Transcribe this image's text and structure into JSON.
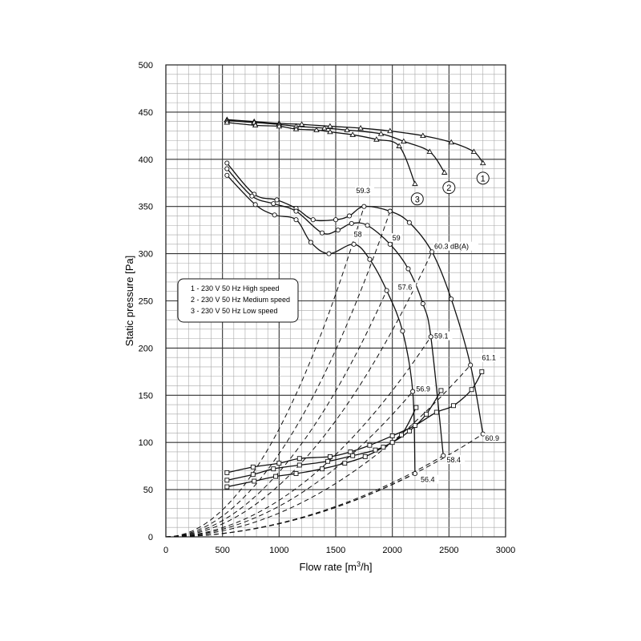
{
  "chart_data": {
    "type": "line",
    "xlabel_main": "Flow rate [m",
    "xlabel_sup": "3",
    "xlabel_end": "/h]",
    "ylabel": "Static pressure [Pa]",
    "xlim": [
      0,
      3000
    ],
    "ylim": [
      0,
      500
    ],
    "x_ticks": [
      0,
      500,
      1000,
      1500,
      2000,
      2500,
      3000
    ],
    "y_ticks": [
      0,
      50,
      100,
      150,
      200,
      250,
      300,
      350,
      400,
      450,
      500
    ],
    "grid": true,
    "legend": {
      "placement": "left",
      "entries": [
        "1 - 230 V 50 Hz High speed",
        "2 - 230 V 50 Hz Medium speed",
        "3 - 230 V 50 Hz Low speed"
      ]
    },
    "series": [
      {
        "name": "1",
        "style": "solid",
        "marker": "triangle",
        "x": [
          540,
          780,
          1000,
          1200,
          1450,
          1720,
          1980,
          2270,
          2520,
          2720,
          2800
        ],
        "y": [
          442,
          440,
          438,
          437,
          435,
          433,
          430,
          425,
          418,
          408,
          396
        ]
      },
      {
        "name": "2",
        "style": "solid",
        "marker": "triangle",
        "x": [
          540,
          780,
          1000,
          1150,
          1400,
          1600,
          1900,
          2100,
          2330,
          2460
        ],
        "y": [
          441,
          439,
          437,
          435,
          433,
          431,
          427,
          419,
          408,
          386
        ]
      },
      {
        "name": "3",
        "style": "solid",
        "marker": "triangle",
        "x": [
          540,
          790,
          1000,
          1150,
          1330,
          1450,
          1650,
          1860,
          2060,
          2200
        ],
        "y": [
          439,
          436,
          435,
          432,
          431,
          429,
          426,
          421,
          414,
          374
        ]
      },
      {
        "name": "",
        "style": "solid",
        "marker": "circle",
        "x": [
          540,
          780,
          980,
          1150,
          1300,
          1500,
          1620,
          1750,
          1980,
          2150,
          2350,
          2520,
          2690,
          2800
        ],
        "y": [
          396,
          363,
          357,
          348,
          336,
          336,
          340,
          350,
          345,
          333,
          302,
          252,
          182,
          109
        ]
      },
      {
        "name": "",
        "style": "solid",
        "marker": "circle",
        "x": [
          540,
          760,
          950,
          1150,
          1380,
          1520,
          1640,
          1780,
          1980,
          2140,
          2270,
          2340,
          2450
        ],
        "y": [
          390,
          361,
          353,
          345,
          322,
          325,
          332,
          330,
          310,
          284,
          247,
          212,
          86
        ]
      },
      {
        "name": "",
        "style": "solid",
        "marker": "circle",
        "x": [
          540,
          790,
          960,
          1150,
          1280,
          1440,
          1660,
          1800,
          1950,
          2090,
          2180,
          2200
        ],
        "y": [
          383,
          352,
          341,
          336,
          312,
          300,
          310,
          294,
          261,
          218,
          154,
          67
        ]
      },
      {
        "name": "",
        "style": "solid",
        "marker": "square",
        "x": [
          540,
          770,
          1000,
          1180,
          1450,
          1630,
          1800,
          2000,
          2200,
          2390,
          2540,
          2700,
          2790
        ],
        "y": [
          68,
          74,
          78,
          83,
          85,
          90,
          97,
          107,
          118,
          132,
          139,
          156,
          175
        ]
      },
      {
        "name": "",
        "style": "solid",
        "marker": "square",
        "x": [
          540,
          770,
          950,
          1180,
          1430,
          1650,
          1850,
          2000,
          2150,
          2300,
          2430
        ],
        "y": [
          60,
          66,
          72,
          76,
          80,
          86,
          92,
          100,
          112,
          130,
          155
        ]
      },
      {
        "name": "",
        "style": "solid",
        "marker": "square",
        "x": [
          540,
          780,
          970,
          1150,
          1380,
          1580,
          1760,
          1920,
          2080,
          2210
        ],
        "y": [
          53,
          59,
          64,
          67,
          72,
          78,
          85,
          95,
          108,
          137
        ]
      },
      {
        "name": "",
        "style": "dashed",
        "x": [
          0,
          1750
        ],
        "y": [
          0,
          350
        ]
      },
      {
        "name": "",
        "style": "dashed",
        "x": [
          0,
          1980
        ],
        "y": [
          0,
          345
        ]
      },
      {
        "name": "",
        "style": "dashed",
        "x": [
          0,
          2350
        ],
        "y": [
          0,
          302
        ]
      },
      {
        "name": "",
        "style": "dashed",
        "x": [
          0,
          1950
        ],
        "y": [
          0,
          261
        ]
      },
      {
        "name": "",
        "style": "dashed",
        "x": [
          0,
          2340
        ],
        "y": [
          0,
          212
        ]
      },
      {
        "name": "",
        "style": "dashed",
        "x": [
          0,
          2690
        ],
        "y": [
          0,
          182
        ]
      },
      {
        "name": "",
        "style": "dashed",
        "x": [
          0,
          2180
        ],
        "y": [
          0,
          154
        ]
      },
      {
        "name": "",
        "style": "dashed",
        "x": [
          0,
          2450
        ],
        "y": [
          0,
          86
        ]
      },
      {
        "name": "",
        "style": "dashed",
        "x": [
          0,
          2200
        ],
        "y": [
          0,
          67
        ]
      },
      {
        "name": "",
        "style": "dashed",
        "x": [
          0,
          2800
        ],
        "y": [
          0,
          109
        ]
      }
    ],
    "curve_markers": [
      {
        "label": "1",
        "x": 2800,
        "y": 380
      },
      {
        "label": "2",
        "x": 2500,
        "y": 370
      },
      {
        "label": "3",
        "x": 2220,
        "y": 358
      }
    ],
    "annotations": [
      {
        "text": "59.3",
        "x": 1680,
        "y": 364
      },
      {
        "text": "59",
        "x": 2000,
        "y": 314
      },
      {
        "text": "58",
        "x": 1660,
        "y": 318
      },
      {
        "text": "60.3 dB(A)",
        "x": 2370,
        "y": 305
      },
      {
        "text": "57.6",
        "x": 2050,
        "y": 262
      },
      {
        "text": "59.1",
        "x": 2370,
        "y": 210
      },
      {
        "text": "61.1",
        "x": 2790,
        "y": 187
      },
      {
        "text": "56.9",
        "x": 2210,
        "y": 154
      },
      {
        "text": "60.9",
        "x": 2820,
        "y": 102
      },
      {
        "text": "58.4",
        "x": 2480,
        "y": 79
      },
      {
        "text": "56.4",
        "x": 2250,
        "y": 58
      }
    ]
  }
}
